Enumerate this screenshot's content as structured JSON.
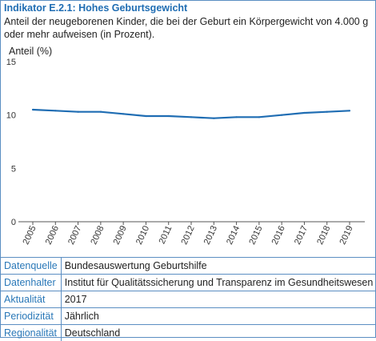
{
  "indicator": {
    "title": "Indikator E.2.1: Hohes Geburtsgewicht",
    "description": "Anteil der neugeborenen Kinder, die bei der Geburt ein Körpergewicht von 4.000 g oder mehr aufweisen (in Prozent)."
  },
  "chart_data": {
    "type": "line",
    "ylabel": "Anteil (%)",
    "ylim": [
      0,
      15
    ],
    "yticks": [
      0,
      5,
      10,
      15
    ],
    "grid": false,
    "x": [
      "2005",
      "2006",
      "2007",
      "2008",
      "2009",
      "2010",
      "2011",
      "2012",
      "2013",
      "2014",
      "2015",
      "2016",
      "2017",
      "2018",
      "2019"
    ],
    "series": [
      {
        "values": [
          10.5,
          10.4,
          10.3,
          10.3,
          10.1,
          9.9,
          9.9,
          9.8,
          9.7,
          9.8,
          9.8,
          10.0,
          10.2,
          10.3,
          10.4
        ],
        "color": "#1f6db3"
      }
    ]
  },
  "meta": [
    {
      "key": "Datenquelle",
      "value": "Bundesauswertung Geburtshilfe"
    },
    {
      "key": "Datenhalter",
      "value": "Institut für Qualitätssicherung und Transparenz im Gesundheitswesen"
    },
    {
      "key": "Aktualität",
      "value": "2017"
    },
    {
      "key": "Periodizität",
      "value": "Jährlich"
    },
    {
      "key": "Regionalität",
      "value": "Deutschland"
    }
  ]
}
